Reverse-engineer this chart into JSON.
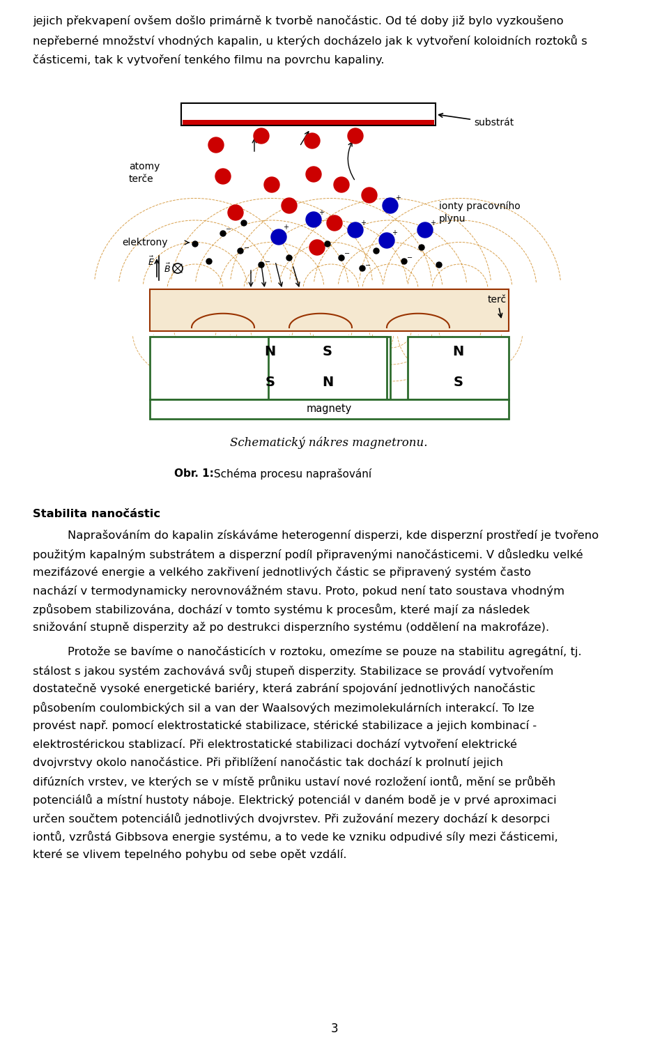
{
  "top_text_lines": [
    "jejich překvapení ovšem došlo primárně k tvorbě nanočástic. Od té doby již bylo vyzkoušeno",
    "nepřeberné množství vhodných kapalin, u kterých docházelo jak k vytvoření koloidních roztoků s",
    "částicemi, tak k vytvoření tenkého filmu na povrchu kapaliny."
  ],
  "caption_italic": "Schematický nákres magnetronu.",
  "obr_bold": "Obr. 1:",
  "obr_normal": " Schéma procesu naprašování",
  "section_bold": "Stabilita nanočástic",
  "paragraph1_indent": "        Naprašováním do kapalin získáváme heterogenní disperzi, kde disperzní prostředí je tvořeno",
  "paragraph1_rest": "použitým kapalným substrátem a disperzní podíl připravenými nanočásticemi. V důsledku velké mezifázové energie a velkého zakřivení jednotlivých částic se připravený systém často nachází v termodynamicky nerovnovážném stavu. Proto, pokud není tato soustava vhodným způsobem stabilizována, dochází v tomto systému k procesům, které mají za následek snižování stupně disperzity až po destrukci disperzního systému (oddělení na makrofáze).",
  "paragraph2_indent": "        Protože se bavíme o nanočásticích v roztoku, omezíme se pouze na stabilitu agregátní, tj.",
  "paragraph2_rest": "stálost s jakou systém zachovává svůj stupeň disperzity. Stabilizace se provádí vytvořením dostatečně vysoké energetické bariéry, která zabrání spojování jednotlivých nanočástic působením coulombických sil a van der Waalsových mezimolekulárních interakcí. To lze provést např. pomocí elektrostatické stabilizace, stérické stabilizace a jejich kombinací - elektrostérickou stablizací. Při elektrostatické stabilizaci dochází vytvoření elektrické dvojvrstvy okolo nanočástice. Při přiblížení nanočástic tak dochází k prolnutí jejich difúzních vrstev, ve kterých se v místě průniku ustaví nové rozložení iontů, mění se průběh potenciálů a místní hustoty náboje. Elektrický potenciál v daném bodě je v prvé aproximaci určen součtem potenciálů jednotlivých dvojvrstev. Při zužování mezery dochází k desorpci iontů, vzrůstá Gibbsova energie systému, a to vede ke vzniku odpudivé síly mezi částicemi, které se vlivem tepelného pohybu od sebe opět vzdálí.",
  "page_number": "3",
  "bg_color": "#ffffff",
  "text_color": "#000000",
  "green_color": "#2d6b2d",
  "orange_color": "#c87800",
  "red_color": "#cc0000",
  "dark_red": "#993300",
  "blue_color": "#0000bb",
  "substrate_red": "#cc0000"
}
